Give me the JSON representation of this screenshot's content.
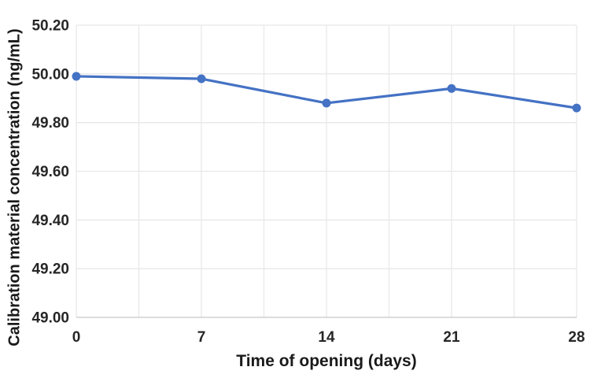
{
  "chart_data": {
    "type": "line",
    "title": "",
    "xlabel": "Time of opening (days)",
    "ylabel": "Calibration material concentration (ng/mL)",
    "x": [
      0,
      7,
      14,
      21,
      28
    ],
    "x_tick_labels": [
      "0",
      "7",
      "14",
      "21",
      "28"
    ],
    "series": [
      {
        "name": "Calibration material concentration (ng/mL)",
        "values": [
          49.99,
          49.98,
          49.88,
          49.94,
          49.86
        ]
      }
    ],
    "xlim": [
      0,
      28
    ],
    "ylim": [
      49.0,
      50.2
    ],
    "y_ticks": [
      50.2,
      50.0,
      49.8,
      49.6,
      49.4,
      49.2,
      49.0
    ],
    "y_tick_labels": [
      "50.20",
      "50.00",
      "49.80",
      "49.60",
      "49.40",
      "49.20",
      "49.00"
    ],
    "x_minor_grid_step": 3.5,
    "grid": "on",
    "legend": "none",
    "colors": {
      "line": "#4472C4",
      "marker": "#4472C4",
      "gridline": "#E8E8E8",
      "axis_line": "#C6C6C6",
      "tick_text": "#262626",
      "title_text": "#1a1a1a",
      "background": "#ffffff"
    }
  }
}
